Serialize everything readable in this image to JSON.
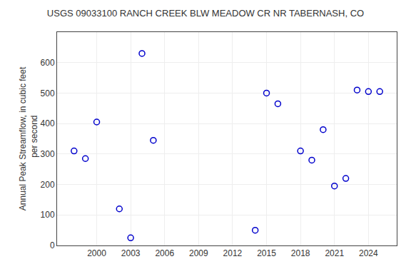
{
  "chart_data": {
    "type": "scatter",
    "title": "USGS 09033100 RANCH CREEK BLW MEADOW CR NR TABERNASH, CO",
    "ylabel": "Annual Peak Streamflow, in cubic feet\n  per second",
    "x": [
      1998,
      1999,
      2000,
      2002,
      2003,
      2004,
      2005,
      2014,
      2015,
      2016,
      2018,
      2019,
      2020,
      2021,
      2022,
      2023,
      2024,
      2025
    ],
    "values": [
      310,
      285,
      405,
      120,
      25,
      630,
      345,
      50,
      500,
      465,
      310,
      280,
      380,
      195,
      220,
      510,
      505,
      505
    ],
    "color": "#0000cc",
    "marker": "circle-open",
    "xlim": [
      1996.5,
      2026.5
    ],
    "ylim": [
      0,
      700
    ],
    "xticks": [
      2000,
      2003,
      2006,
      2009,
      2012,
      2015,
      2018,
      2021,
      2024
    ],
    "yticks": [
      0,
      100,
      200,
      300,
      400,
      500,
      600
    ],
    "grid": true
  }
}
